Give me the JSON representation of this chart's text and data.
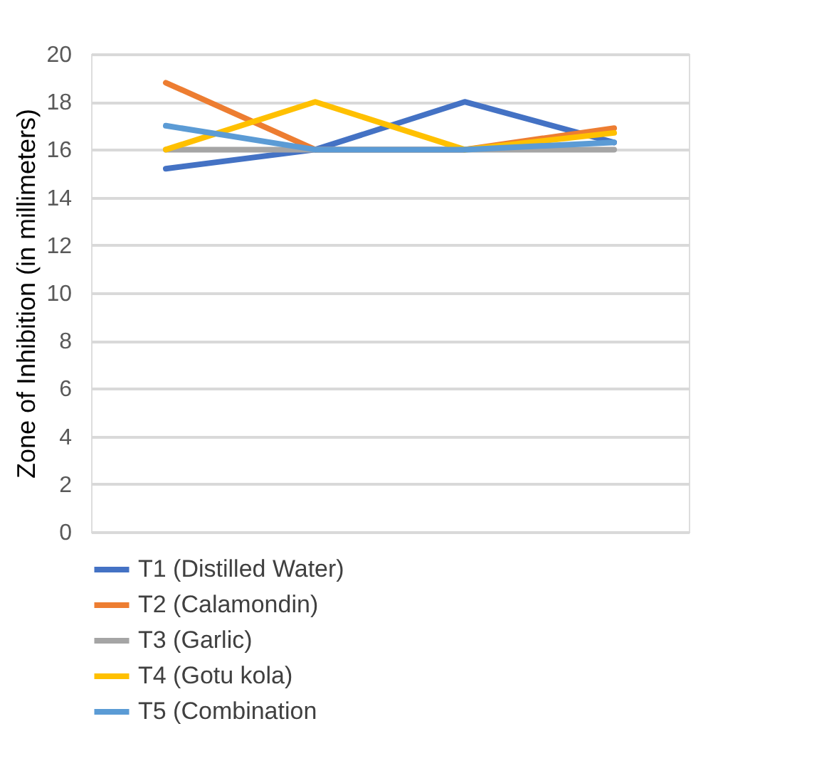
{
  "chart_data": {
    "type": "line",
    "ylabel": "Zone of Inhibition (in millimeters)",
    "categories": [
      null,
      null,
      null,
      null
    ],
    "series": [
      {
        "name": "T1 (Distilled Water)",
        "color": "#4472c4",
        "values": [
          15.2,
          16,
          18,
          16.3
        ]
      },
      {
        "name": "T2 (Calamondin)",
        "color": "#ed7d31",
        "values": [
          18.8,
          16,
          16,
          16.9
        ]
      },
      {
        "name": "T3 (Garlic)",
        "color": "#a5a5a5",
        "values": [
          16,
          16,
          16,
          16
        ]
      },
      {
        "name": "T4 (Gotu kola)",
        "color": "#ffc000",
        "values": [
          16,
          18,
          16,
          16.7
        ]
      },
      {
        "name": "T5 (Combination",
        "color": "#5b9bd5",
        "values": [
          17,
          16,
          16,
          16.3
        ]
      }
    ],
    "ylim": [
      0,
      20
    ],
    "yticks": [
      0,
      2,
      4,
      6,
      8,
      10,
      12,
      14,
      16,
      18,
      20
    ],
    "grid": "y",
    "legend": "bottom",
    "marker": "none",
    "line_style": "solid"
  }
}
